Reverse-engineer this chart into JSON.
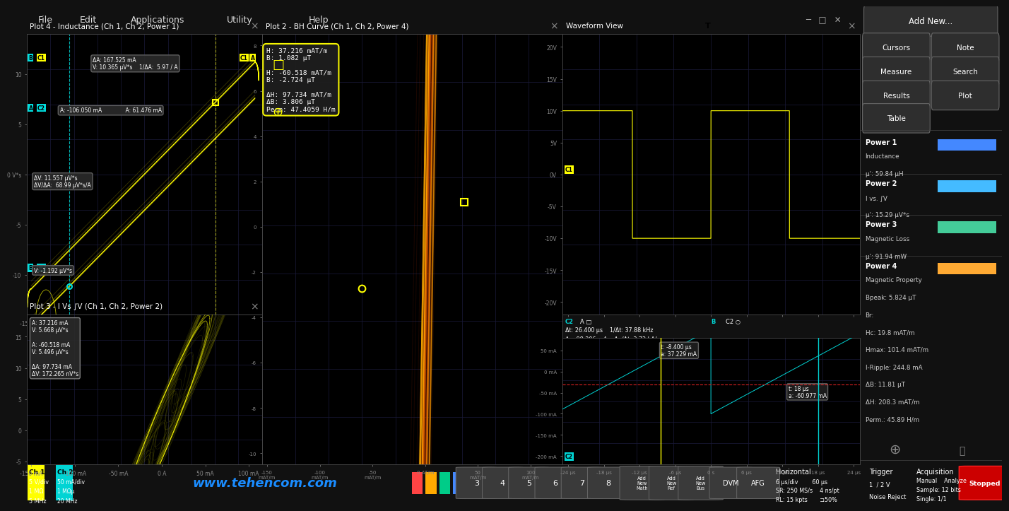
{
  "bg_color": "#111111",
  "menu_bg": "#2a2a2a",
  "panel_bg": "#000000",
  "title_bar_bg": "#1c1c1c",
  "grid_color": "#1a1a3a",
  "border_color": "#444444",
  "yellow": "#ffff00",
  "orange": "#ff8800",
  "cyan": "#00d4d4",
  "white": "#ffffff",
  "gray": "#888888",
  "plot1_title": "Plot 4 - Inductance (Ch 1, Ch 2, Power 1)",
  "plot2_title": "Plot 2 - BH Curve (Ch 1, Ch 2, Power 4)",
  "plot3_title": "Plot 3 - I Vs ∫V (Ch 1, Ch 2, Power 2)",
  "plot4_title": "Waveform View",
  "menu_items": [
    "File",
    "Edit",
    "Applications",
    "Utility",
    "Help"
  ],
  "power_colors": [
    "#4488ff",
    "#44bbff",
    "#44cc99",
    "#ffaa33"
  ],
  "power_names": [
    "Power 1",
    "Power 2",
    "Power 3",
    "Power 4"
  ],
  "power1_lines": [
    "Inductance",
    "μ': 59.84 μH"
  ],
  "power2_lines": [
    "I vs. ∫V",
    "μ': 15.29 μV*s"
  ],
  "power3_lines": [
    "Magnetic Loss",
    "μ': 91.94 mW"
  ],
  "power4_lines": [
    "Magnetic Property",
    "Bpeak: 5.824 μT",
    "Br:",
    "Hc: 19.8 mAT/m",
    "Hmax: 101.4 mAT/m",
    "I-Ripple: 244.8 mA",
    "ΔB: 11.81 μT",
    "ΔH: 208.3 mAT/m",
    "Perm.: 45.89 H/m"
  ],
  "ch1_label": "Ch 1",
  "ch1_color": "#ffff00",
  "ch1_settings": [
    "5 V/div",
    "1 MΩ",
    "5 MHz"
  ],
  "ch2_label": "Ch 2",
  "ch2_color": "#00d4d4",
  "ch2_settings": [
    "50 mA/div",
    "1 MΩμ",
    "20 MHz"
  ],
  "url": "www.tehencom.com",
  "horiz_label": "Horizontal",
  "horiz_line1": "6 μs/div        60 μs",
  "horiz_line2": "SR: 250 MS/s    4 ns/pt",
  "horiz_line3": "RL: 15 kpts       ⊐50%",
  "trig_label": "Trigger",
  "trig_line1": "1  / 2 V",
  "trig_line2": "Noise Reject",
  "acq_label": "Acquisition",
  "acq_line1": "Manual    Analyze",
  "acq_line2": "Sample: 12 bits",
  "acq_line3": "Single: 1/1",
  "p1_ann1": "ΔA: 167.525 mA\nV: 10.365 μV*s    1/ΔA:  5.97 / A",
  "p1_ann2": "A: -106.050 mA              A: 61.476 mA",
  "p1_ann3": "ΔV: 11.557 μV*s\nΔV/ΔA:  68.99 μV*s/A",
  "p1_ann4": "V: -1.192 μV*s",
  "p2_ann": "H: 37.216 mAT/m\nB: 1.082 μT\n\nH: -60.518 mAT/m\nB: -2.724 μT\n\nΔH: 97.734 mAT/m\nΔB: 3.806 μT\nPerm: 47.4059 H/m",
  "p3_ann": "A: 37.216 mA\nV: 5.668 μV*s\n\nA: -60.518 mA\nV: 5.496 μV*s\n\nΔA: 97.734 mA\nΔV: 172.265 nV*s",
  "wv_cursor_line1": "Δt: 26.400 μs    1/Δt: 37.88 kHz",
  "wv_cursor_line2": "Δa: 98.206 mA    Δa/Δt: 3.72 kA/s",
  "wv_cursor_a": "t: -8.400 μs\na: 37.229 mA",
  "wv_cursor_b": "t: 18 μs\na: -60.977 mA",
  "freq_hz": 37880
}
